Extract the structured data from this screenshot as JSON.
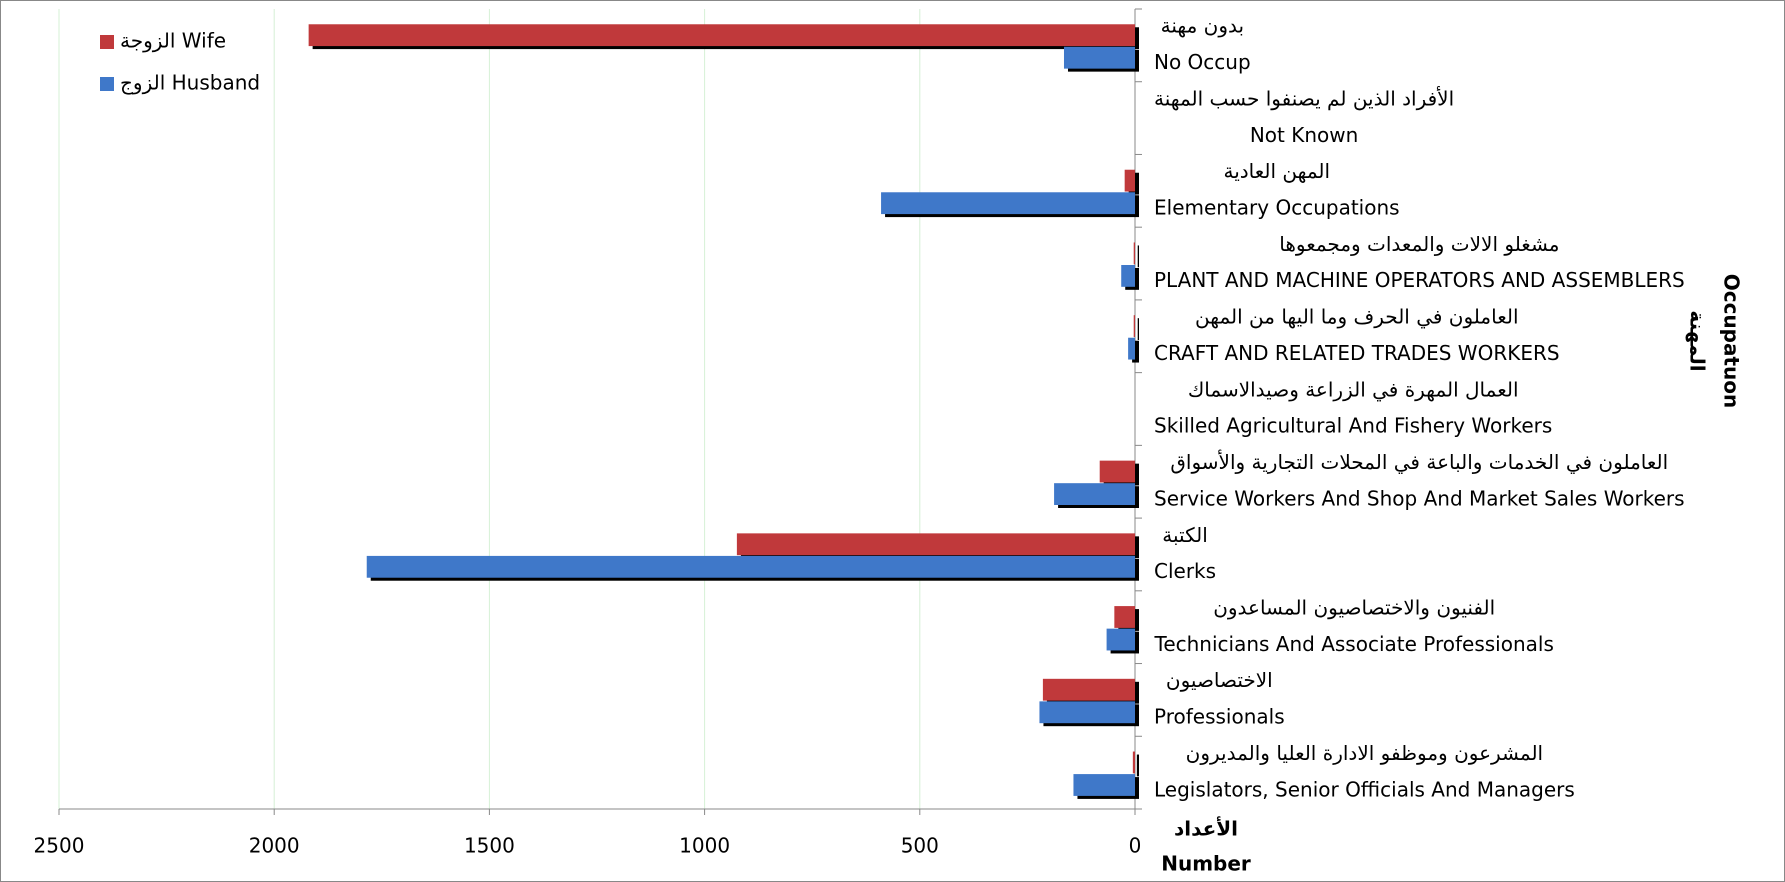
{
  "chart_data": {
    "type": "bar",
    "orientation": "horizontal",
    "xreverse": true,
    "categories": [
      "No Occup",
      "Not Known",
      "Elementary Occupations",
      "PLANT AND MACHINE OPERATORS AND ASSEMBLERS",
      "CRAFT AND RELATED TRADES WORKERS",
      "Skilled Agricultural And Fishery Workers",
      "Service Workers And Shop And Market Sales Workers",
      "Clerks",
      "Technicians And Associate Professionals",
      "Professionals",
      "Legislators, Senior Officials And Managers"
    ],
    "categories_ar": [
      "بدون مهنة",
      "الأفراد الذين لم يصنفوا حسب المهنة",
      "المهن العادية",
      "مشغلو الالات والمعدات ومجمعوها",
      "العاملون في الحرف وما اليها من المهن",
      "العمال المهرة في الزراعة وصيدالاسماك",
      "العاملون في الخدمات والباعة في المحلات التجارية والأسواق",
      "الكتبة",
      "الفنيون والاختصاصيون المساعدون",
      "الاختصاصيون",
      "المشرعون وموظفو الادارة العليا والمديرون"
    ],
    "series": [
      {
        "name": "الزوجة Wife",
        "color": "#c0393b",
        "values": [
          1920,
          0,
          24,
          3,
          3,
          0,
          82,
          925,
          48,
          214,
          5
        ]
      },
      {
        "name": "الزوج Husband",
        "color": "#3f78c9",
        "values": [
          165,
          0,
          590,
          32,
          16,
          0,
          188,
          1785,
          66,
          222,
          143
        ]
      }
    ],
    "xlim": [
      0,
      2500
    ],
    "xticks": [
      0,
      500,
      1000,
      1500,
      2000,
      2500
    ],
    "xlabel": [
      "الأعداد",
      "Number"
    ],
    "ylabel": [
      "المهنة",
      "Occupatuon"
    ],
    "grid": true,
    "legend": "upper left"
  }
}
